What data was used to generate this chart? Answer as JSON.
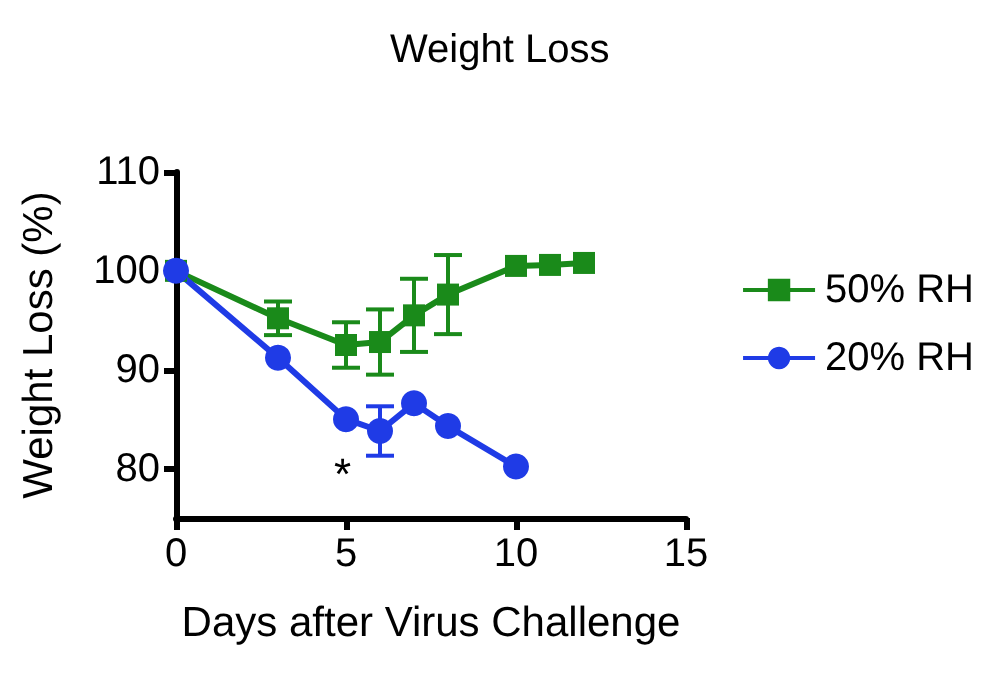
{
  "chart_data": {
    "type": "line",
    "title": "Weight Loss",
    "xlabel": "Days after Virus Challenge",
    "ylabel": "Weight Loss (%)",
    "xlim": [
      0,
      15
    ],
    "xticks": [
      0,
      5,
      10,
      15
    ],
    "ylim": [
      75,
      110
    ],
    "yticks": [
      80,
      90,
      100,
      110
    ],
    "grid": false,
    "legend": "right",
    "annotations": [
      "*"
    ],
    "series": [
      {
        "name": "50% RH",
        "color": "#1a8a1a",
        "marker": "square",
        "x": [
          0,
          3,
          5,
          6,
          7,
          8,
          10,
          11,
          12
        ],
        "values": [
          100,
          95.2,
          92.5,
          92.8,
          95.5,
          97.6,
          100.5,
          100.6,
          100.8
        ],
        "errors": [
          null,
          1.7,
          2.3,
          3.3,
          3.7,
          4,
          null,
          null,
          null
        ]
      },
      {
        "name": "20% RH",
        "color": "#1f3be6",
        "marker": "circle",
        "x": [
          0,
          3,
          5,
          6,
          7,
          8,
          10
        ],
        "values": [
          100,
          91.2,
          85,
          83.8,
          86.6,
          84.3,
          80.2
        ],
        "errors": [
          null,
          null,
          null,
          2.5,
          null,
          null,
          null
        ]
      }
    ]
  }
}
